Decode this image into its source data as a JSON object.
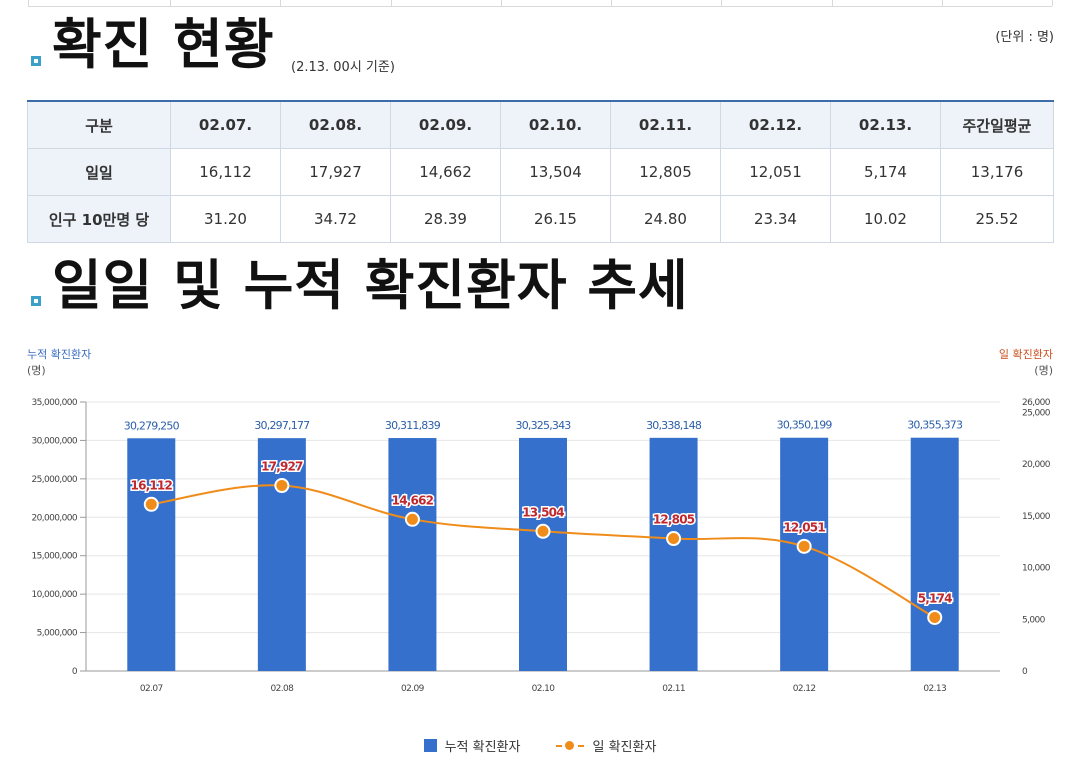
{
  "section1": {
    "title": "확진 현황",
    "subtitle": "(2.13. 00시 기준)",
    "unit": "(단위 : 명)"
  },
  "table": {
    "headers": [
      "구분",
      "02.07.",
      "02.08.",
      "02.09.",
      "02.10.",
      "02.11.",
      "02.12.",
      "02.13.",
      "주간일평균"
    ],
    "rows": [
      {
        "label": "일일",
        "values": [
          "16,112",
          "17,927",
          "14,662",
          "13,504",
          "12,805",
          "12,051",
          "5,174",
          "13,176"
        ]
      },
      {
        "label": "인구 10만명 당",
        "values": [
          "31.20",
          "34.72",
          "28.39",
          "26.15",
          "24.80",
          "23.34",
          "10.02",
          "25.52"
        ]
      }
    ]
  },
  "section2": {
    "title": "일일 및 누적 확진환자 추세"
  },
  "legend": {
    "bar": "누적 확진환자",
    "line": "일 확진환자"
  },
  "colors": {
    "bar": "#3570cc",
    "line": "#f08c1a",
    "left_axis_label": "#3a6cc0",
    "right_axis_label": "#c8501e",
    "bar_label": "#2b5fa8",
    "line_label": "#c0282d",
    "header_rule": "#3d6da8",
    "bullet": "#3aa0c8"
  },
  "chart_data": {
    "type": "bar",
    "categories": [
      "02.07",
      "02.08",
      "02.09",
      "02.10",
      "02.11",
      "02.12",
      "02.13"
    ],
    "series": [
      {
        "name": "누적 확진환자",
        "type": "bar",
        "axis": "left",
        "values": [
          30279250,
          30297177,
          30311839,
          30325343,
          30338148,
          30350199,
          30355373
        ]
      },
      {
        "name": "일 확진환자",
        "type": "line",
        "axis": "right",
        "values": [
          16112,
          17927,
          14662,
          13504,
          12805,
          12051,
          5174
        ]
      }
    ],
    "bar_labels": [
      "30,279,250",
      "30,297,177",
      "30,311,839",
      "30,325,343",
      "30,338,148",
      "30,350,199",
      "30,355,373"
    ],
    "line_labels": [
      "16,112",
      "17,927",
      "14,662",
      "13,504",
      "12,805",
      "12,051",
      "5,174"
    ],
    "y_left": {
      "label": "누적 확진환자",
      "unit": "(명)",
      "range": [
        0,
        35000000
      ],
      "ticks": [
        0,
        5000000,
        10000000,
        15000000,
        20000000,
        25000000,
        30000000,
        35000000
      ],
      "tick_labels": [
        "0",
        "5,000,000",
        "10,000,000",
        "15,000,000",
        "20,000,000",
        "25,000,000",
        "30,000,000",
        "35,000,000"
      ]
    },
    "y_right": {
      "label": "일 확진환자",
      "unit": "(명)",
      "range": [
        0,
        26000
      ],
      "ticks": [
        0,
        5000,
        10000,
        15000,
        20000,
        25000,
        26000
      ],
      "tick_labels": [
        "0",
        "5,000",
        "10,000",
        "15,000",
        "20,000",
        "25,000",
        "26,000"
      ]
    },
    "grid": true,
    "legend_position": "bottom-center"
  }
}
